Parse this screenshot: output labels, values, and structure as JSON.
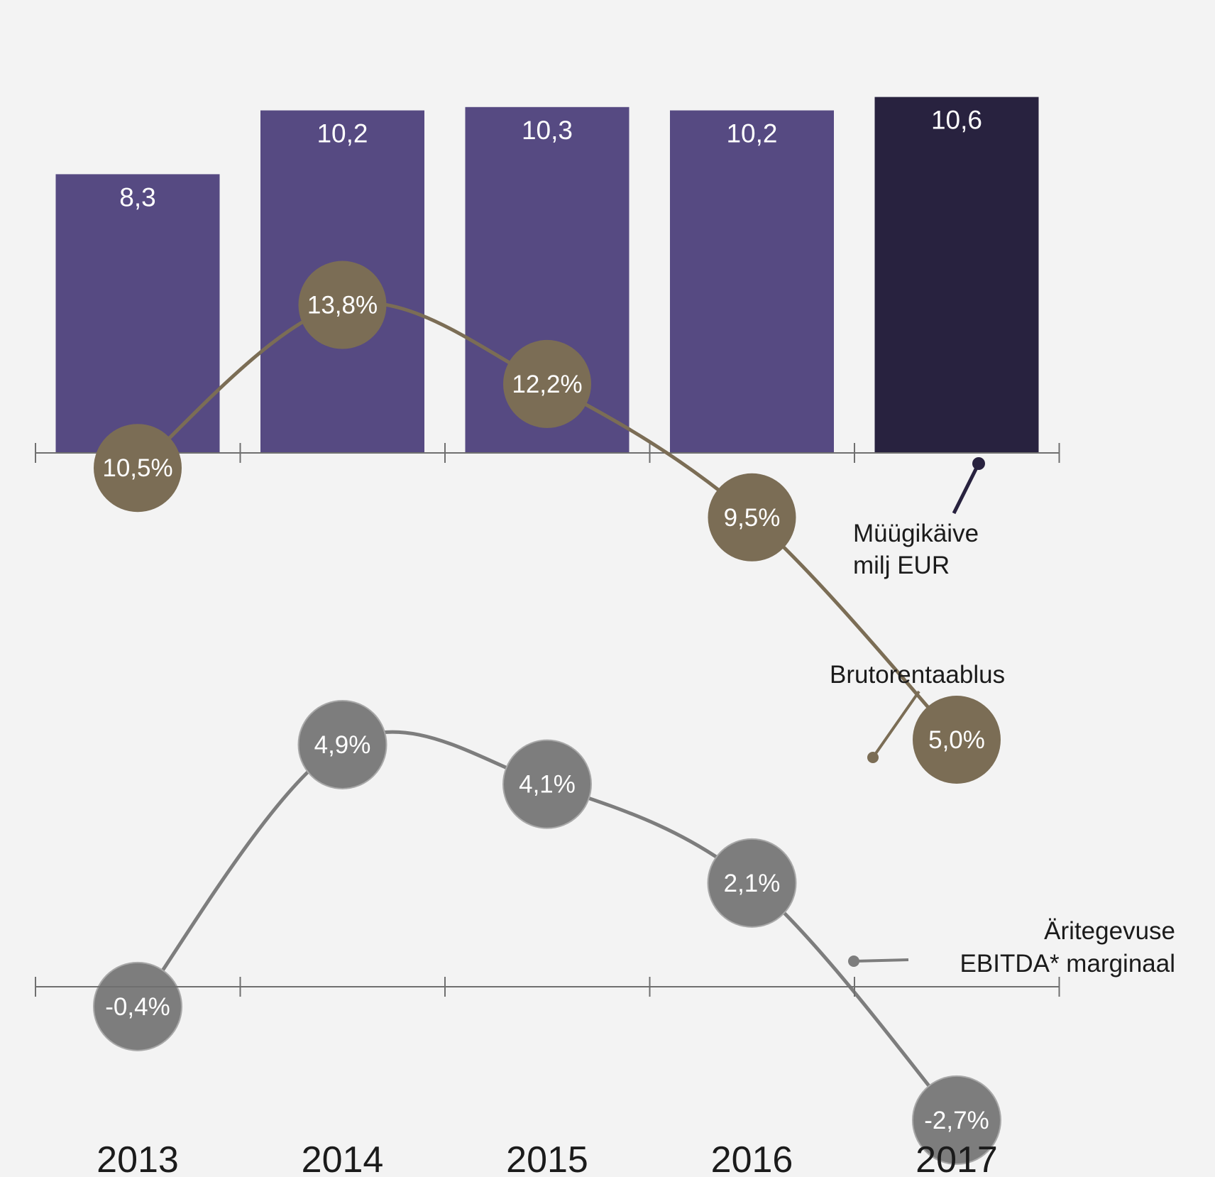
{
  "chart_data": [
    {
      "type": "bar",
      "categories": [
        "2013",
        "2014",
        "2015",
        "2016",
        "2017"
      ],
      "values": [
        8.3,
        10.2,
        10.3,
        10.2,
        10.6
      ],
      "value_labels": [
        "8,3",
        "10,2",
        "10,3",
        "10,2",
        "10,6"
      ],
      "series_name": "Müügikäive milj EUR",
      "callout_lines": [
        "Müügikäive",
        "milj EUR"
      ],
      "colors": {
        "bar": "#564a82",
        "highlight": "#28223f"
      },
      "highlight_category": "2017"
    },
    {
      "type": "line",
      "categories": [
        "2013",
        "2014",
        "2015",
        "2016",
        "2017"
      ],
      "series": [
        {
          "name": "Brutorentaablus",
          "values": [
            10.5,
            13.8,
            12.2,
            9.5,
            5.0
          ],
          "labels": [
            "10,5%",
            "13,8%",
            "12,2%",
            "9,5%",
            "5,0%"
          ],
          "color": "#7b6d55",
          "callout_lines": [
            "Brutorentaablus"
          ]
        },
        {
          "name": "Äritegevuse EBITDA* marginaal",
          "values": [
            -0.4,
            4.9,
            4.1,
            2.1,
            -2.7
          ],
          "labels": [
            "-0,4%",
            "4,9%",
            "4,1%",
            "2,1%",
            "-2,7%"
          ],
          "color": "#7d7d7d",
          "callout_lines": [
            "Äritegevuse",
            "EBITDA* marginaal"
          ]
        }
      ],
      "zero_line": true
    }
  ],
  "x_labels": [
    "2013",
    "2014",
    "2015",
    "2016",
    "2017"
  ],
  "colors": {
    "background": "#f3f3f3",
    "axis": "#6f6f6f",
    "text": "#1b1b1b"
  }
}
